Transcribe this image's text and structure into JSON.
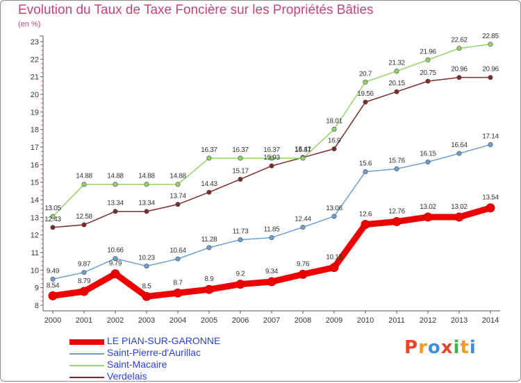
{
  "title": "Evolution du Taux de Taxe Foncière sur les Propriétés Bâties",
  "unit": "(en %)",
  "logo": {
    "text": "Proxiti",
    "colors": [
      "#e8462a",
      "#f29a1f",
      "#3a8fd6",
      "#e8462a",
      "#39b54a",
      "#f29a1f",
      "#3a8fd6"
    ]
  },
  "chart_data": {
    "type": "line",
    "title": "Evolution du Taux de Taxe Foncière sur les Propriétés Bâties",
    "ylabel": "(en %)",
    "xlabel": "",
    "x": [
      "2000",
      "2001",
      "2002",
      "2003",
      "2004",
      "2005",
      "2006",
      "2007",
      "2008",
      "2009",
      "2010",
      "2011",
      "2012",
      "2013",
      "2014"
    ],
    "ylim": [
      8,
      23
    ],
    "yticks": [
      "8",
      "9",
      "10",
      "11",
      "12",
      "13",
      "14",
      "15",
      "16",
      "17",
      "18",
      "19",
      "20",
      "21",
      "22",
      "23"
    ],
    "grid": false,
    "legend_position": "bottom-left",
    "series": [
      {
        "name": "LE PIAN-SUR-GARONNE",
        "color": "#ee0000",
        "values": [
          8.54,
          8.79,
          9.79,
          8.5,
          8.7,
          8.9,
          9.2,
          9.34,
          9.76,
          10.15,
          12.6,
          12.76,
          13.02,
          13.02,
          13.54
        ],
        "labels": [
          "8.54",
          "8.79",
          "9.79",
          "8.5",
          "8.7",
          "8.9",
          "9.2",
          "9.34",
          "9.76",
          "10.15",
          "12.6",
          "12.76",
          "13.02",
          "13.02",
          "13.54"
        ]
      },
      {
        "name": "Saint-Pierre-d'Aurillac",
        "color": "#6a9fd0",
        "values": [
          9.49,
          9.87,
          10.66,
          10.23,
          10.64,
          11.28,
          11.73,
          11.85,
          12.44,
          13.06,
          15.6,
          15.76,
          16.15,
          16.64,
          17.14
        ],
        "labels": [
          "9.49",
          "9.87",
          "10.66",
          "10.23",
          "10.64",
          "11.28",
          "11.73",
          "11.85",
          "12.44",
          "13.06",
          "15.6",
          "15.76",
          "16.15",
          "16.64",
          "17.14"
        ]
      },
      {
        "name": "Saint-Macaire",
        "color": "#93d36a",
        "values": [
          13.05,
          14.88,
          14.88,
          14.88,
          14.88,
          16.37,
          16.37,
          16.37,
          16.37,
          18.01,
          20.7,
          21.32,
          21.96,
          22.62,
          22.85
        ],
        "labels": [
          "13.05",
          "14.88",
          "14.88",
          "14.88",
          "14.88",
          "16.37",
          "16.37",
          "16.37",
          "16.37",
          "18.01",
          "20.7",
          "21.32",
          "21.96",
          "22.62",
          "22.85"
        ]
      },
      {
        "name": "Verdelais",
        "color": "#7a2a2a",
        "values": [
          12.43,
          12.58,
          13.34,
          13.34,
          13.74,
          14.43,
          15.17,
          15.93,
          16.41,
          16.9,
          19.56,
          20.15,
          20.75,
          20.96,
          20.96
        ],
        "labels": [
          "12.43",
          "12.58",
          "13.34",
          "13.34",
          "13.74",
          "14.43",
          "15.17",
          "15.93",
          "16.41",
          "16.9",
          "19.56",
          "20.15",
          "20.75",
          "20.96",
          "20.96"
        ]
      }
    ]
  }
}
